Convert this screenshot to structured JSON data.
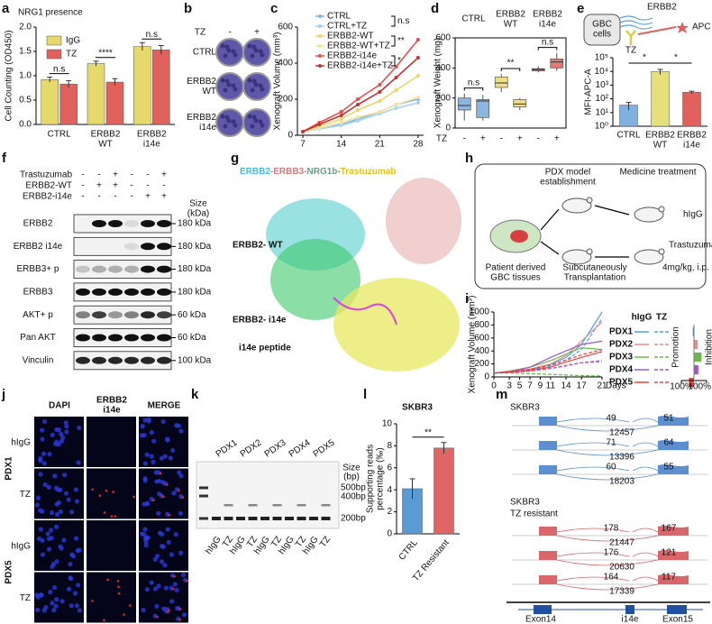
{
  "letters": [
    "a",
    "b",
    "c",
    "d",
    "e",
    "f",
    "g",
    "h",
    "i",
    "j",
    "k",
    "l",
    "m"
  ],
  "chart_data": [
    {
      "type": "bar",
      "title": "NRG1 presence",
      "y_label": "Cell Counting (OD450)",
      "categories": [
        [
          "CTRL"
        ],
        [
          "ERBB2",
          "WT"
        ],
        [
          "ERBB2",
          "i14e"
        ]
      ],
      "series": [
        {
          "name": "IgG",
          "color": "#e5d96b",
          "values": [
            0.92,
            1.25,
            1.6
          ],
          "errors": [
            0.05,
            0.05,
            0.08
          ]
        },
        {
          "name": "TZ",
          "color": "#e0605c",
          "values": [
            0.83,
            0.87,
            1.53
          ],
          "errors": [
            0.07,
            0.07,
            0.09
          ]
        }
      ],
      "ylim": [
        0,
        2
      ],
      "yticks": [
        {
          "value": 0,
          "label": "0.0"
        },
        0.5,
        {
          "value": 1,
          "label": "1.0"
        },
        1.5,
        {
          "value": 2,
          "label": "2.0"
        }
      ],
      "annotations": [
        "n.s",
        "****",
        "n.s"
      ]
    },
    {
      "type": "line",
      "y_label": "Xenograft Volume (mm³)",
      "x": [
        7,
        10,
        14,
        17,
        21,
        24,
        28
      ],
      "xlim": [
        6,
        29
      ],
      "xticks": [
        7,
        14,
        21,
        28
      ],
      "ylim": [
        0,
        600
      ],
      "yticks": [
        0,
        200,
        400,
        600
      ],
      "series": [
        {
          "name": "CTRL",
          "color": "#7db9ea",
          "values": [
            20,
            40,
            60,
            90,
            130,
            170,
            200
          ]
        },
        {
          "name": "CTRL+TZ",
          "color": "#a9d2f2",
          "values": [
            20,
            35,
            55,
            80,
            120,
            150,
            180
          ]
        },
        {
          "name": "ERBB2-WT",
          "color": "#f0d46a",
          "values": [
            20,
            50,
            90,
            140,
            190,
            250,
            330
          ]
        },
        {
          "name": "ERBB2-WT+TZ",
          "color": "#f5e39c",
          "values": [
            20,
            40,
            70,
            100,
            130,
            170,
            210
          ]
        },
        {
          "name": "ERBB2-i14e",
          "color": "#e84d4d",
          "values": [
            20,
            70,
            130,
            200,
            280,
            380,
            530
          ]
        },
        {
          "name": "ERBB2-i14e+TZ",
          "color": "#c83232",
          "values": [
            20,
            60,
            110,
            170,
            240,
            320,
            430
          ]
        }
      ],
      "annotations": [
        "n.s",
        "**",
        "*"
      ]
    },
    {
      "type": "box",
      "y_label": "Xenograft Weight (mg)",
      "headers": [
        [
          "CTRL"
        ],
        [
          "ERBB2",
          "WT"
        ],
        [
          "ERBB2",
          "i14e"
        ]
      ],
      "x_label": "TZ",
      "treatments": [
        "-",
        "+",
        "-",
        "+",
        "-",
        "+"
      ],
      "colors": [
        "#8ab6e0",
        "#8ab6e0",
        "#eede86",
        "#eede86",
        "#e07b7b",
        "#e07b7b"
      ],
      "boxes": [
        {
          "min": 50,
          "q1": 120,
          "median": 150,
          "q3": 200,
          "max": 230
        },
        {
          "min": 50,
          "q1": 70,
          "median": 180,
          "q3": 190,
          "max": 220
        },
        {
          "min": 240,
          "q1": 270,
          "median": 300,
          "q3": 340,
          "max": 360
        },
        {
          "min": 120,
          "q1": 140,
          "median": 160,
          "q3": 190,
          "max": 200
        },
        {
          "min": 370,
          "q1": 380,
          "median": 390,
          "q3": 395,
          "max": 410
        },
        {
          "min": 380,
          "q1": 400,
          "median": 440,
          "q3": 460,
          "max": 500
        }
      ],
      "ylim": [
        0,
        600
      ],
      "yticks": [
        0,
        200,
        400,
        600
      ],
      "annotations": [
        "n.s",
        "**",
        "n.s"
      ]
    },
    {
      "type": "bar",
      "y_label": "MFI-APC-A",
      "log_scale": true,
      "categories": [
        [
          "CTRL"
        ],
        [
          "ERBB2",
          "WT"
        ],
        [
          "ERBB2",
          "i14e"
        ]
      ],
      "values": [
        35,
        10000,
        300
      ],
      "errors": [
        20,
        4000,
        60
      ],
      "colors": [
        "#7fb0e0",
        "#e6e07a",
        "#e0605c"
      ],
      "ylim": [
        1,
        100000
      ],
      "yticks": [
        {
          "value": 1,
          "label": "10⁰"
        },
        {
          "value": 10,
          "label": "10¹"
        },
        {
          "value": 100,
          "label": "10²"
        },
        {
          "value": 1000,
          "label": "10³"
        },
        {
          "value": 10000,
          "label": "10⁴"
        },
        {
          "value": 100000,
          "label": "10⁵"
        }
      ],
      "annotations": [
        "*",
        "*"
      ]
    },
    {
      "type": "line",
      "y_label": "Xenograft Volume (mm³)",
      "x_label": "Days",
      "x": [
        0,
        3,
        7,
        11,
        14,
        17,
        21
      ],
      "xlim": [
        0,
        21
      ],
      "xticks": [
        0,
        3,
        5,
        7,
        9,
        11,
        14,
        17,
        21
      ],
      "ylim": [
        0,
        1000
      ],
      "yticks": [
        0,
        200,
        400,
        600,
        800,
        1000
      ],
      "legend_headers": [
        "hIgG",
        "TZ"
      ],
      "series": [
        {
          "name": "PDX1",
          "color": "#4aa3e8",
          "hIgG": [
            60,
            70,
            110,
            190,
            300,
            500,
            1000
          ],
          "TZ": [
            60,
            65,
            100,
            170,
            260,
            420,
            900
          ]
        },
        {
          "name": "PDX2",
          "color": "#f08a8a",
          "hIgG": [
            60,
            80,
            120,
            200,
            330,
            550,
            850
          ],
          "TZ": [
            60,
            70,
            90,
            130,
            180,
            220,
            230
          ]
        },
        {
          "name": "PDX3",
          "color": "#6cb84a",
          "hIgG": [
            60,
            90,
            150,
            250,
            350,
            450,
            420
          ],
          "TZ": [
            60,
            60,
            50,
            40,
            30,
            20,
            15
          ]
        },
        {
          "name": "PDX4",
          "color": "#a055c8",
          "hIgG": [
            60,
            80,
            150,
            300,
            400,
            500,
            550
          ],
          "TZ": [
            60,
            70,
            90,
            130,
            170,
            220,
            250
          ]
        },
        {
          "name": "PDX5",
          "color": "#e8443f",
          "hIgG": [
            60,
            70,
            100,
            150,
            230,
            300,
            390
          ],
          "TZ": [
            60,
            80,
            120,
            180,
            260,
            340,
            420
          ]
        }
      ],
      "response": {
        "values": [
          -10,
          30,
          60,
          35,
          -40
        ],
        "xlim": [
          -100,
          100
        ],
        "xticks": [
          {
            "value": -100,
            "label": "100%"
          },
          {
            "value": 100,
            "label": "100%"
          }
        ],
        "labels": [
          "Promotion",
          "Inhibition"
        ]
      }
    },
    {
      "type": "bar",
      "title": "SKBR3",
      "y_label": [
        "Supporting reads",
        "percentage (‰)"
      ],
      "categories": [
        "CTRL",
        "TZ Resistant"
      ],
      "values": [
        4.1,
        7.8
      ],
      "errors": [
        0.9,
        0.5
      ],
      "colors": [
        "#5b9bd5",
        "#e06666"
      ],
      "ylim": [
        0,
        10
      ],
      "yticks": [
        0,
        2,
        4,
        6,
        8,
        10
      ],
      "annotations": [
        "**"
      ]
    }
  ],
  "panel_b": {
    "label": "TZ",
    "columns": [
      "-",
      "+"
    ],
    "rows": [
      [
        "CTRL"
      ],
      [
        "ERBB2",
        "WT"
      ],
      [
        "ERBB2",
        "i14e"
      ]
    ]
  },
  "panel_e": {
    "cell": [
      "GBC",
      "cells"
    ],
    "receptor": "ERBB2",
    "antibody": "TZ",
    "detector": "APC"
  },
  "panel_f": {
    "treatments": [
      {
        "name": "Trastuzumab",
        "signs": [
          "-",
          "-",
          "+",
          "-",
          "-",
          "+"
        ]
      },
      {
        "name": "ERBB2-WT",
        "signs": [
          "-",
          "+",
          "+",
          "-",
          "-",
          "-"
        ]
      },
      {
        "name": "ERBB2-i14e",
        "signs": [
          "-",
          "-",
          "-",
          "-",
          "+",
          "+"
        ]
      }
    ],
    "size_header": [
      "Size",
      "(kDa)"
    ],
    "rows": [
      {
        "name": "ERBB2",
        "size": "180 kDa"
      },
      {
        "name": "ERBB2 i14e",
        "size": "180 kDa"
      },
      {
        "name": "ERBB3+ p",
        "size": "180 kDa"
      },
      {
        "name": "ERBB3",
        "size": "180 kDa"
      },
      {
        "name": "AKT+ p",
        "size": "60 kDa"
      },
      {
        "name": "Pan AKT",
        "size": "60 kDa"
      },
      {
        "name": "Vinculin",
        "size": "100 kDa"
      }
    ]
  },
  "panel_g": {
    "title": [
      {
        "text": "ERBB2",
        "color": "#3fbfe0"
      },
      {
        "text": "-",
        "color": "#888888"
      },
      {
        "text": "ERBB3",
        "color": "#d97a7a"
      },
      {
        "text": "-",
        "color": "#888888"
      },
      {
        "text": "NRG1b",
        "color": "#6a9a8a"
      },
      {
        "text": "-",
        "color": "#888888"
      },
      {
        "text": "Trastuzumab",
        "color": "#e0c020"
      }
    ],
    "labels": [
      {
        "text": "ERBB2- WT",
        "color": "#48c8c8"
      },
      {
        "text": "ERBB2- i14e",
        "color": "#3aae3a"
      },
      {
        "text": "i14e peptide",
        "color": "#e040e0"
      }
    ]
  },
  "panel_h": {
    "establish": [
      "PDX model",
      "establishment"
    ],
    "treatment": "Medicine treatment",
    "source": [
      "Patient derived",
      "GBC tissues"
    ],
    "transplant": [
      "Subcutaneously",
      "Transplantation"
    ],
    "control": "hIgG",
    "drug": "Trastuzumab",
    "dose": "4mg/kg, i.p."
  },
  "panel_j": {
    "columns": [
      {
        "lines": [
          "DAPI"
        ],
        "color": "#2a3ad8"
      },
      {
        "lines": [
          "ERBB2",
          "i14e"
        ],
        "color": "#d02828"
      },
      {
        "lines": [
          "MERGE"
        ],
        "color": "#222222"
      }
    ],
    "groups": [
      {
        "name": "PDX1",
        "rows": [
          "hIgG",
          "TZ"
        ]
      },
      {
        "name": "PDX5",
        "rows": [
          "hIgG",
          "TZ"
        ]
      }
    ]
  },
  "panel_k": {
    "samples": [
      "PDX1",
      "PDX2",
      "PDX3",
      "PDX4",
      "PDX5"
    ],
    "lanes": [
      "hIgG",
      "TZ",
      "hIgG",
      "TZ",
      "hIgG",
      "TZ",
      "hIgG",
      "TZ",
      "hIgG",
      "TZ"
    ],
    "size_header": [
      "Size",
      "(bp)"
    ],
    "markers": [
      "500bp",
      "400bp",
      "200bp"
    ]
  },
  "panel_m": {
    "groups": [
      {
        "title": [
          "SKBR3"
        ],
        "color": "#5b8fd0",
        "tracks": [
          [
            49,
            51,
            12457
          ],
          [
            71,
            64,
            13396
          ],
          [
            60,
            55,
            18203
          ]
        ]
      },
      {
        "title": [
          "SKBR3",
          "TZ resistant"
        ],
        "color": "#d9666b",
        "tracks": [
          [
            178,
            167,
            21447
          ],
          [
            176,
            121,
            20630
          ],
          [
            164,
            117,
            17339
          ]
        ]
      }
    ],
    "exons": [
      "Exon14",
      "i14e",
      "Exon15"
    ]
  }
}
